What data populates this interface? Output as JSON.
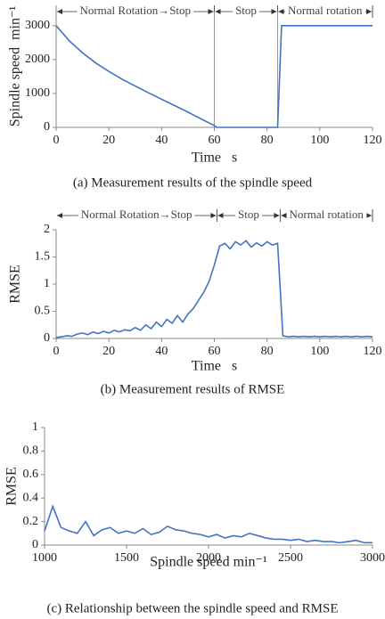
{
  "chart_data": [
    {
      "type": "line",
      "caption": "(a) Measurement results of the spindle speed",
      "xlabel": "Time   s",
      "ylabel": "Spindle speed  min⁻¹",
      "x": [
        0,
        5,
        10,
        15,
        20,
        25,
        30,
        35,
        40,
        45,
        50,
        55,
        60,
        61,
        84,
        85.5,
        120
      ],
      "values": [
        3000,
        2550,
        2200,
        1900,
        1650,
        1420,
        1220,
        1020,
        830,
        640,
        450,
        250,
        50,
        0,
        0,
        3000,
        3000
      ],
      "color": "#4472c4",
      "xlim": [
        0,
        120
      ],
      "xticks": [
        0,
        20,
        40,
        60,
        80,
        100,
        120
      ],
      "ylim": [
        0,
        3600
      ],
      "yticks": [
        0,
        1000,
        2000,
        3000
      ],
      "phase_lines": true,
      "phases": [
        {
          "label": "Normal Rotation→Stop",
          "xstart": 0,
          "xend": 60
        },
        {
          "label": "Stop",
          "xstart": 60,
          "xend": 84
        },
        {
          "label": "Normal rotation",
          "xstart": 84,
          "xend": 120
        }
      ]
    },
    {
      "type": "line",
      "caption": "(b) Measurement results of RMSE",
      "xlabel": "Time   s",
      "ylabel": "RMSE",
      "x": [
        0,
        2,
        4,
        6,
        8,
        10,
        12,
        14,
        16,
        18,
        20,
        22,
        24,
        26,
        28,
        30,
        32,
        34,
        36,
        38,
        40,
        42,
        44,
        46,
        48,
        50,
        52,
        54,
        56,
        58,
        60,
        62,
        64,
        66,
        68,
        70,
        72,
        74,
        76,
        78,
        80,
        82,
        84,
        86,
        88,
        90,
        92,
        94,
        96,
        98,
        100,
        102,
        104,
        106,
        108,
        110,
        112,
        114,
        116,
        118,
        120
      ],
      "values": [
        0.02,
        0.03,
        0.05,
        0.04,
        0.08,
        0.1,
        0.07,
        0.12,
        0.09,
        0.13,
        0.1,
        0.15,
        0.12,
        0.16,
        0.14,
        0.2,
        0.15,
        0.25,
        0.18,
        0.3,
        0.22,
        0.35,
        0.28,
        0.42,
        0.3,
        0.45,
        0.55,
        0.7,
        0.85,
        1.05,
        1.35,
        1.7,
        1.75,
        1.65,
        1.78,
        1.72,
        1.8,
        1.68,
        1.76,
        1.7,
        1.78,
        1.72,
        1.75,
        0.05,
        0.03,
        0.04,
        0.03,
        0.04,
        0.03,
        0.04,
        0.03,
        0.04,
        0.03,
        0.04,
        0.03,
        0.04,
        0.03,
        0.04,
        0.03,
        0.04,
        0.03
      ],
      "color": "#4472c4",
      "xlim": [
        0,
        120
      ],
      "xticks": [
        0,
        20,
        40,
        60,
        80,
        100,
        120
      ],
      "ylim": [
        0,
        2
      ],
      "yticks": [
        0,
        0.5,
        1,
        1.5,
        2
      ],
      "phase_lines": false,
      "phases": [
        {
          "label": "Normal Rotation→Stop",
          "xstart": 0,
          "xend": 61
        },
        {
          "label": "Stop",
          "xstart": 61,
          "xend": 85
        },
        {
          "label": "Normal rotation",
          "xstart": 85,
          "xend": 120
        }
      ]
    },
    {
      "type": "line",
      "caption": "(c) Relationship between the spindle speed and RMSE",
      "xlabel": "Spindle speed min⁻¹",
      "ylabel": "RMSE",
      "x": [
        1000,
        1050,
        1100,
        1150,
        1200,
        1250,
        1300,
        1350,
        1400,
        1450,
        1500,
        1550,
        1600,
        1650,
        1700,
        1750,
        1800,
        1850,
        1900,
        1950,
        2000,
        2050,
        2100,
        2150,
        2200,
        2250,
        2300,
        2350,
        2400,
        2450,
        2500,
        2550,
        2600,
        2650,
        2700,
        2750,
        2800,
        2850,
        2900,
        2950,
        3000
      ],
      "values": [
        0.12,
        0.33,
        0.15,
        0.12,
        0.1,
        0.2,
        0.08,
        0.13,
        0.15,
        0.1,
        0.12,
        0.1,
        0.14,
        0.09,
        0.11,
        0.16,
        0.13,
        0.12,
        0.1,
        0.09,
        0.07,
        0.09,
        0.06,
        0.08,
        0.07,
        0.1,
        0.08,
        0.06,
        0.05,
        0.05,
        0.04,
        0.05,
        0.03,
        0.04,
        0.03,
        0.03,
        0.02,
        0.03,
        0.04,
        0.02,
        0.02
      ],
      "color": "#4472c4",
      "xlim": [
        1000,
        3000
      ],
      "xticks": [
        1000,
        1500,
        2000,
        2500,
        3000
      ],
      "ylim": [
        0,
        1
      ],
      "yticks": [
        0,
        0.2,
        0.4,
        0.6,
        0.8,
        1
      ]
    }
  ]
}
